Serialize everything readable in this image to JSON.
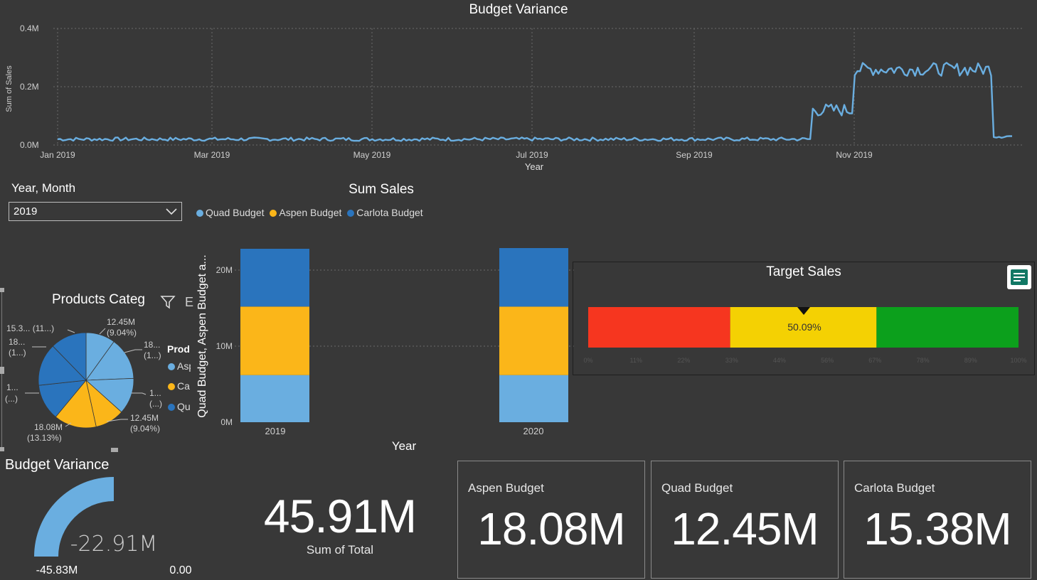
{
  "line_chart": {
    "title": "Budget Variance",
    "ylabel": "Sum of Sales",
    "xlabel": "Year",
    "y_ticks": [
      "0.4M",
      "0.2M",
      "0.0M"
    ],
    "x_ticks": [
      "Jan 2019",
      "Mar 2019",
      "May 2019",
      "Jul 2019",
      "Sep 2019",
      "Nov 2019"
    ]
  },
  "slicer": {
    "label": "Year, Month",
    "value": "2019"
  },
  "bar_chart": {
    "title": "Sum Sales",
    "ylabel": "Quad Budget, Aspen Budget a...",
    "xlabel": "Year",
    "legend": [
      "Quad Budget",
      "Aspen Budget",
      "Carlota Budget"
    ],
    "y_ticks": [
      "20M",
      "10M",
      "0M"
    ],
    "categories": [
      "2019",
      "2020"
    ]
  },
  "pie_chart": {
    "title": "Products Categ",
    "legend_title": "Prod",
    "legend_items": [
      "Asp",
      "Ca",
      "Qu"
    ],
    "labels": [
      {
        "line1": "12.45M",
        "line2": "(9.04%)"
      },
      {
        "line1": "18...",
        "line2": "(1...)"
      },
      {
        "line1": "1...",
        "line2": "(...)"
      },
      {
        "line1": "12.45M",
        "line2": "(9.04%)"
      },
      {
        "line1": "18.08M",
        "line2": "(13.13%)"
      },
      {
        "line1": "1...",
        "line2": "(...)"
      },
      {
        "line1": "18...",
        "line2": "(1...)"
      },
      {
        "line1": "15.3... (11...)",
        "line2": ""
      }
    ]
  },
  "gauge_chart": {
    "title": "Target Sales",
    "value_label": "50.09%",
    "ticks": [
      "0%",
      "11%",
      "22%",
      "33%",
      "44%",
      "56%",
      "67%",
      "78%",
      "89%",
      "100%"
    ]
  },
  "variance_gauge": {
    "title": "Budget Variance",
    "value": "-22.91M",
    "min": "-45.83M",
    "max": "0.00"
  },
  "total_card": {
    "value": "45.91M",
    "label": "Sum of Total"
  },
  "cards": [
    {
      "label": "Aspen Budget",
      "value": "18.08M"
    },
    {
      "label": "Quad Budget",
      "value": "12.45M"
    },
    {
      "label": "Carlota Budget",
      "value": "15.38M"
    }
  ],
  "colors": {
    "quad": "#6aaee0",
    "aspen": "#fbb619",
    "carlota": "#2a74bd",
    "line": "#6aaee0",
    "gauge_red": "#f6361f",
    "gauge_yellow": "#f4d103",
    "gauge_green": "#0ca01c"
  },
  "chart_data": [
    {
      "type": "line",
      "title": "Budget Variance",
      "xlabel": "Year",
      "ylabel": "Sum of Sales",
      "ylim": [
        0,
        400000
      ],
      "x_range": [
        "2019-01-01",
        "2019-12-31"
      ],
      "series": [
        {
          "segments": [
            {
              "from": "2019-01-01",
              "to": "2019-10-15",
              "approx_value": 20000
            },
            {
              "from": "2019-10-16",
              "to": "2019-10-31",
              "approx_value": 120000
            },
            {
              "from": "2019-11-01",
              "to": "2019-12-23",
              "approx_value": 260000
            },
            {
              "from": "2019-12-24",
              "to": "2019-12-31",
              "approx_value": 30000
            }
          ]
        }
      ]
    },
    {
      "type": "bar",
      "title": "Sum Sales",
      "xlabel": "Year",
      "ylabel": "Quad Budget, Aspen Budget a...",
      "stacked": true,
      "categories": [
        "2019",
        "2020"
      ],
      "ylim": [
        0,
        23000000
      ],
      "series": [
        {
          "name": "Quad Budget",
          "values": [
            6200000,
            6200000
          ]
        },
        {
          "name": "Aspen Budget",
          "values": [
            9000000,
            9000000
          ]
        },
        {
          "name": "Carlota Budget",
          "values": [
            7600000,
            7700000
          ]
        }
      ]
    },
    {
      "type": "pie",
      "title": "Products Categ",
      "slices": [
        {
          "label": "12.45M (9.04%)",
          "value": 12.45
        },
        {
          "label": "18... (1...)",
          "value": 18.08
        },
        {
          "label": "1... (...)",
          "value": 15.38
        },
        {
          "label": "12.45M (9.04%)",
          "value": 12.45
        },
        {
          "label": "18.08M (13.13%)",
          "value": 18.08
        },
        {
          "label": "1... (...)",
          "value": 15.38
        },
        {
          "label": "18... (1...)",
          "value": 18.08
        },
        {
          "label": "15.3... (11...)",
          "value": 15.38
        }
      ]
    },
    {
      "type": "gauge",
      "title": "Target Sales",
      "value_percent": 50.09,
      "bands": [
        {
          "from": 0,
          "to": 33,
          "color": "#f6361f"
        },
        {
          "from": 33,
          "to": 67,
          "color": "#f4d103"
        },
        {
          "from": 67,
          "to": 100,
          "color": "#0ca01c"
        }
      ]
    },
    {
      "type": "gauge",
      "title": "Budget Variance",
      "value": -22.91,
      "min": -45.83,
      "max": 0
    }
  ]
}
